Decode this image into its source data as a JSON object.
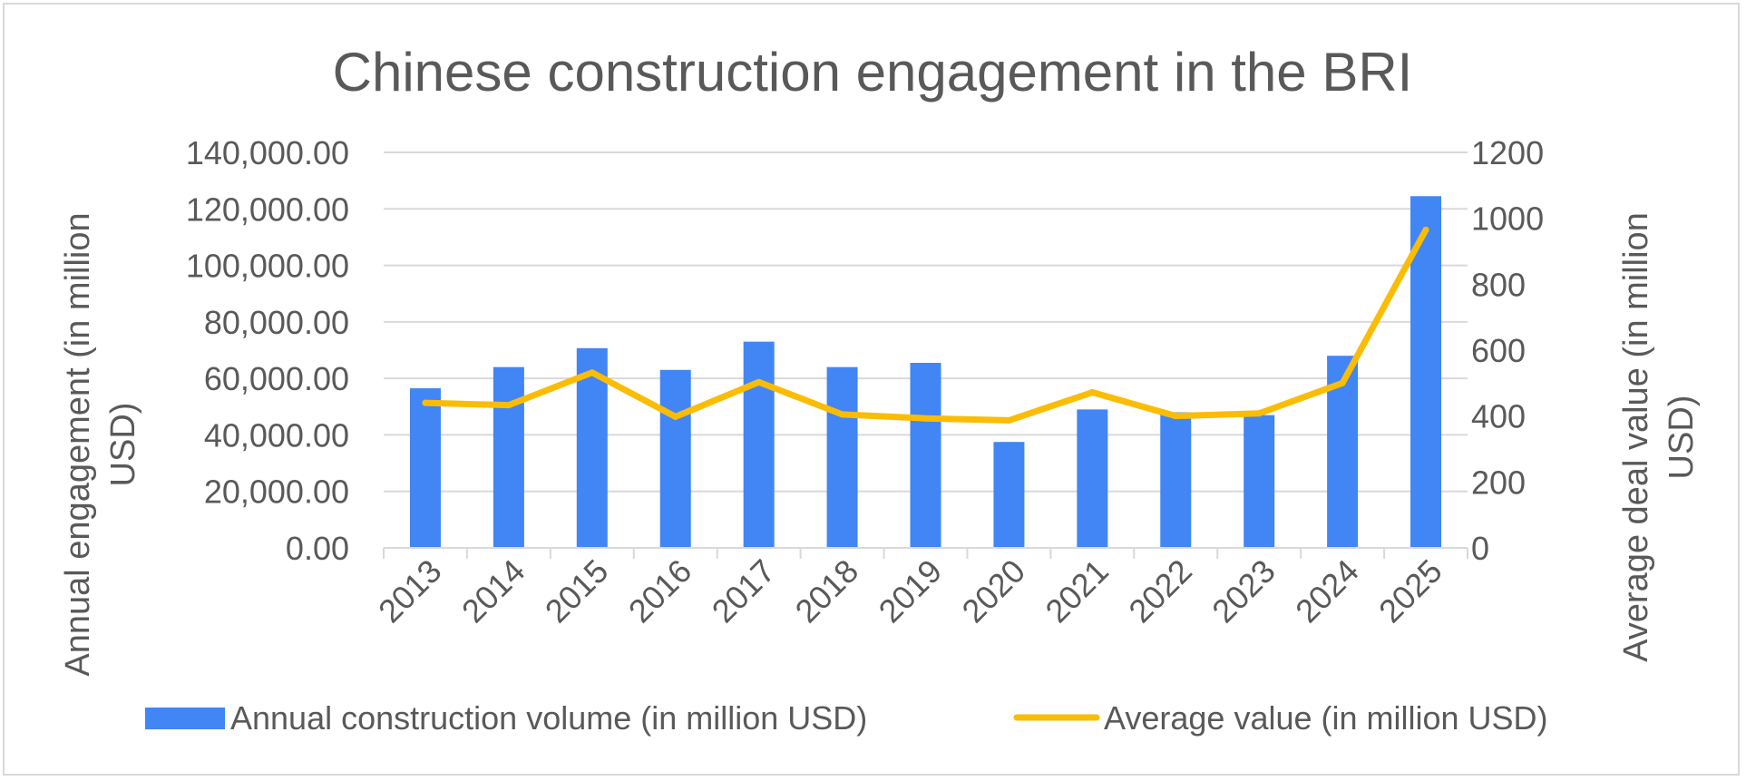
{
  "chart_data": {
    "type": "bar+line",
    "title": "Chinese construction engagement in the BRI",
    "categories": [
      "2013",
      "2014",
      "2015",
      "2016",
      "2017",
      "2018",
      "2019",
      "2020",
      "2021",
      "2022",
      "2023",
      "2024",
      "2025"
    ],
    "series": [
      {
        "name": "Annual construction volume (in million USD)",
        "type": "bar",
        "axis": "left",
        "values": [
          56500,
          64000,
          70700,
          63000,
          73000,
          64000,
          65500,
          37500,
          49000,
          48000,
          47000,
          68000,
          124500
        ]
      },
      {
        "name": "Average value (in million USD)",
        "type": "line",
        "axis": "right",
        "values": [
          440,
          433,
          532,
          398,
          503,
          405,
          393,
          387,
          472,
          400,
          408,
          500,
          965
        ]
      }
    ],
    "y_left": {
      "label_lines": [
        "Annual engagement (in million",
        "USD)"
      ],
      "ylim": [
        0,
        140000
      ],
      "ticks": [
        "0.00",
        "20,000.00",
        "40,000.00",
        "60,000.00",
        "80,000.00",
        "100,000.00",
        "120,000.00",
        "140,000.00"
      ]
    },
    "y_right": {
      "label_lines": [
        "Average deal value (in million",
        "USD)"
      ],
      "ylim": [
        0,
        1200
      ],
      "ticks": [
        "0",
        "200",
        "400",
        "600",
        "800",
        "1000",
        "1200"
      ]
    },
    "grid": true,
    "legend_position": "bottom",
    "colors": {
      "bar": "#4285f4",
      "line": "#fbbc04",
      "text": "#595959",
      "grid": "#d9d9d9"
    }
  }
}
